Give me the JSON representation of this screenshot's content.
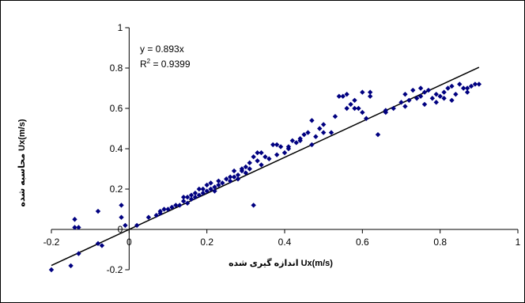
{
  "chart_data": {
    "type": "scatter",
    "xlabel": "اندازه گیری شده Ux(m/s)",
    "ylabel": "محاسبه شده Ux(m/s)",
    "xlim": [
      -0.2,
      1
    ],
    "ylim": [
      -0.2,
      1
    ],
    "x_ticks": [
      "-0.2",
      "0",
      "0.2",
      "0.4",
      "0.6",
      "0.8",
      "1"
    ],
    "y_ticks": [
      "-0.2",
      "0",
      "0.2",
      "0.4",
      "0.6",
      "0.8",
      "1"
    ],
    "grid": false,
    "legend": "none",
    "marker_color": "#000080",
    "marker": "diamond",
    "trendline": {
      "slope": 0.893,
      "intercept": 0,
      "x_range": [
        -0.2,
        0.9
      ],
      "color": "#000000"
    },
    "annotations": {
      "equation": "y = 0.893x",
      "r2_base": "R",
      "r2_sup": "2",
      "r2_value": " = 0.9399"
    },
    "points": [
      [
        -0.2,
        -0.2
      ],
      [
        -0.15,
        -0.18
      ],
      [
        -0.13,
        -0.12
      ],
      [
        -0.08,
        -0.07
      ],
      [
        -0.07,
        -0.08
      ],
      [
        -0.14,
        0.05
      ],
      [
        -0.14,
        0.01
      ],
      [
        -0.13,
        0.01
      ],
      [
        -0.08,
        0.09
      ],
      [
        -0.02,
        0.12
      ],
      [
        -0.02,
        0.06
      ],
      [
        -0.01,
        0.02
      ],
      [
        0.02,
        0.02
      ],
      [
        0.05,
        0.06
      ],
      [
        0.07,
        0.07
      ],
      [
        0.08,
        0.08
      ],
      [
        0.08,
        0.09
      ],
      [
        0.09,
        0.1
      ],
      [
        0.1,
        0.1
      ],
      [
        0.12,
        0.12
      ],
      [
        0.13,
        0.12
      ],
      [
        0.14,
        0.14
      ],
      [
        0.15,
        0.13
      ],
      [
        0.15,
        0.16
      ],
      [
        0.16,
        0.15
      ],
      [
        0.17,
        0.16
      ],
      [
        0.17,
        0.18
      ],
      [
        0.18,
        0.17
      ],
      [
        0.19,
        0.18
      ],
      [
        0.19,
        0.2
      ],
      [
        0.2,
        0.19
      ],
      [
        0.2,
        0.22
      ],
      [
        0.21,
        0.2
      ],
      [
        0.22,
        0.21
      ],
      [
        0.22,
        0.19
      ],
      [
        0.23,
        0.22
      ],
      [
        0.24,
        0.23
      ],
      [
        0.25,
        0.25
      ],
      [
        0.26,
        0.24
      ],
      [
        0.27,
        0.26
      ],
      [
        0.28,
        0.27
      ],
      [
        0.28,
        0.25
      ],
      [
        0.29,
        0.29
      ],
      [
        0.29,
        0.3
      ],
      [
        0.3,
        0.28
      ],
      [
        0.31,
        0.3
      ],
      [
        0.31,
        0.33
      ],
      [
        0.32,
        0.36
      ],
      [
        0.32,
        0.12
      ],
      [
        0.33,
        0.38
      ],
      [
        0.33,
        0.34
      ],
      [
        0.34,
        0.32
      ],
      [
        0.35,
        0.36
      ],
      [
        0.36,
        0.35
      ],
      [
        0.37,
        0.42
      ],
      [
        0.38,
        0.42
      ],
      [
        0.39,
        0.41
      ],
      [
        0.4,
        0.38
      ],
      [
        0.41,
        0.41
      ],
      [
        0.42,
        0.44
      ],
      [
        0.43,
        0.43
      ],
      [
        0.44,
        0.45
      ],
      [
        0.46,
        0.48
      ],
      [
        0.47,
        0.54
      ],
      [
        0.48,
        0.46
      ],
      [
        0.49,
        0.5
      ],
      [
        0.5,
        0.52
      ],
      [
        0.52,
        0.48
      ],
      [
        0.53,
        0.56
      ],
      [
        0.54,
        0.66
      ],
      [
        0.55,
        0.66
      ],
      [
        0.56,
        0.6
      ],
      [
        0.57,
        0.62
      ],
      [
        0.58,
        0.64
      ],
      [
        0.59,
        0.6
      ],
      [
        0.6,
        0.58
      ],
      [
        0.61,
        0.55
      ],
      [
        0.62,
        0.68
      ],
      [
        0.64,
        0.47
      ],
      [
        0.66,
        0.59
      ],
      [
        0.68,
        0.6
      ],
      [
        0.7,
        0.63
      ],
      [
        0.71,
        0.67
      ],
      [
        0.72,
        0.64
      ],
      [
        0.73,
        0.69
      ],
      [
        0.74,
        0.65
      ],
      [
        0.75,
        0.66
      ],
      [
        0.76,
        0.62
      ],
      [
        0.77,
        0.69
      ],
      [
        0.78,
        0.65
      ],
      [
        0.79,
        0.67
      ],
      [
        0.8,
        0.66
      ],
      [
        0.81,
        0.68
      ],
      [
        0.82,
        0.7
      ],
      [
        0.83,
        0.64
      ],
      [
        0.84,
        0.67
      ],
      [
        0.85,
        0.72
      ],
      [
        0.86,
        0.7
      ],
      [
        0.87,
        0.68
      ],
      [
        0.88,
        0.71
      ],
      [
        0.89,
        0.72
      ],
      [
        0.9,
        0.72
      ],
      [
        0.58,
        0.6
      ],
      [
        0.56,
        0.67
      ],
      [
        0.6,
        0.68
      ],
      [
        0.62,
        0.66
      ],
      [
        0.66,
        0.58
      ],
      [
        0.75,
        0.7
      ],
      [
        0.79,
        0.63
      ],
      [
        0.83,
        0.71
      ],
      [
        0.71,
        0.61
      ],
      [
        0.76,
        0.68
      ],
      [
        0.81,
        0.65
      ],
      [
        0.87,
        0.7
      ],
      [
        0.38,
        0.37
      ],
      [
        0.41,
        0.4
      ],
      [
        0.44,
        0.44
      ],
      [
        0.47,
        0.42
      ],
      [
        0.26,
        0.26
      ],
      [
        0.23,
        0.24
      ],
      [
        0.21,
        0.23
      ],
      [
        0.27,
        0.29
      ],
      [
        0.18,
        0.2
      ],
      [
        0.16,
        0.17
      ],
      [
        0.14,
        0.16
      ],
      [
        0.11,
        0.11
      ],
      [
        0.34,
        0.38
      ],
      [
        0.3,
        0.31
      ],
      [
        0.45,
        0.47
      ],
      [
        0.5,
        0.48
      ]
    ]
  }
}
